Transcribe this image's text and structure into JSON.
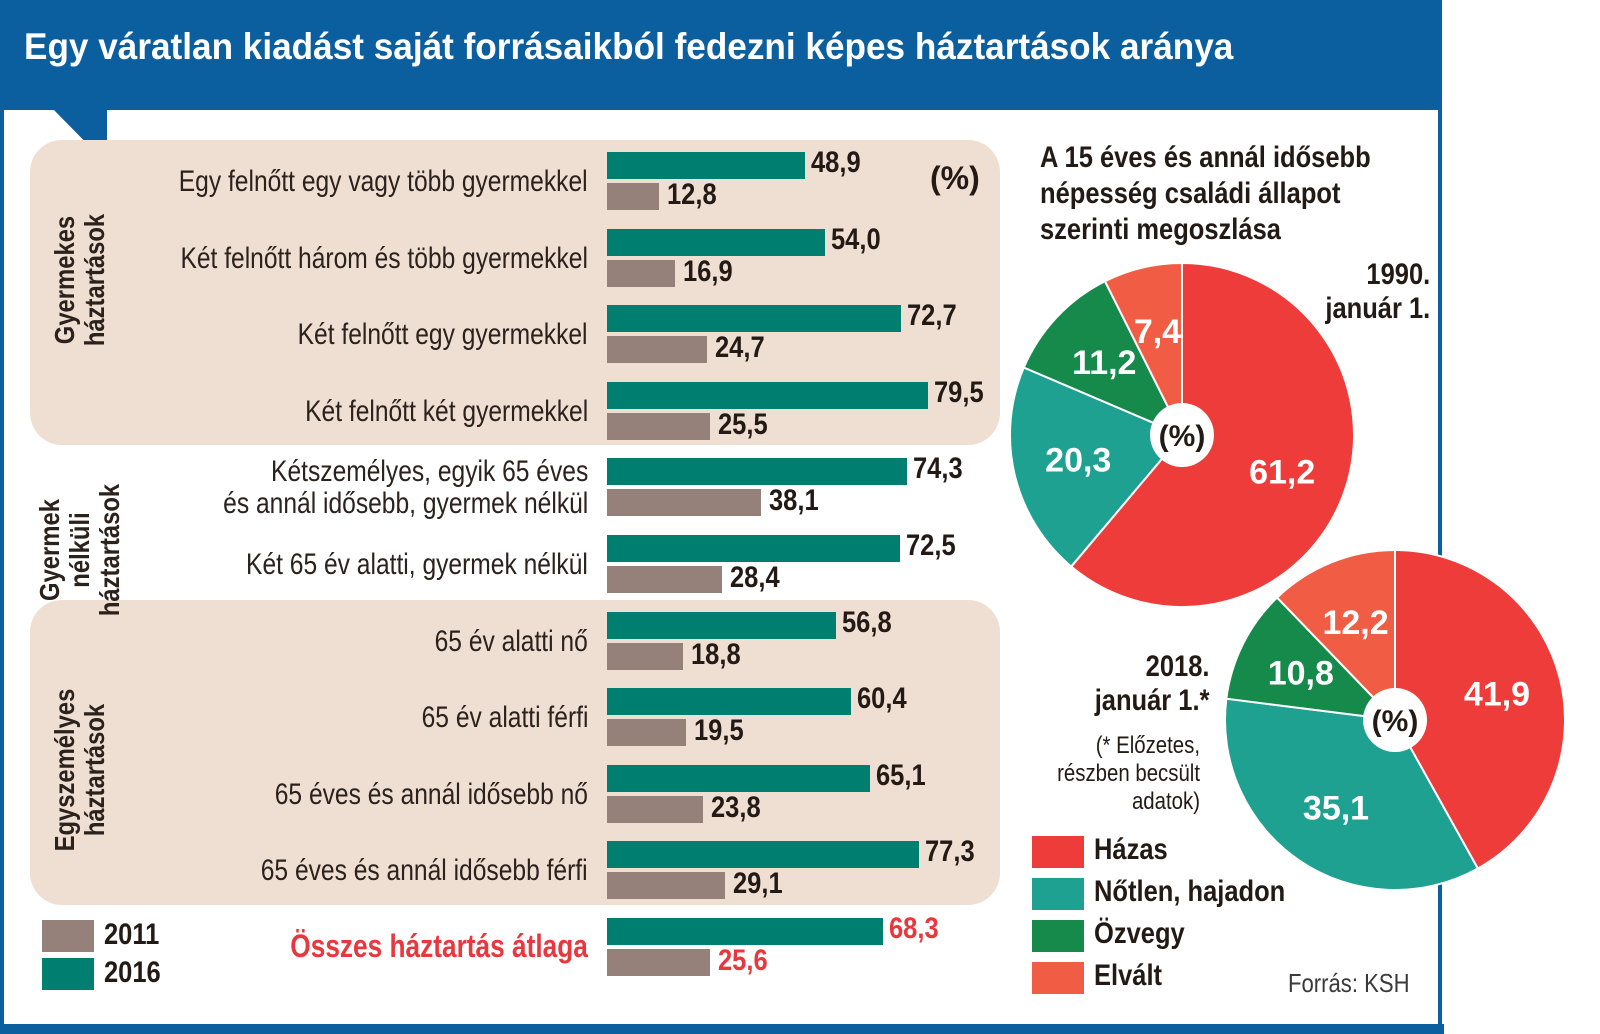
{
  "title": "Egy váratlan kiadást saját forrásaikból fedezni képes háztartások aránya",
  "unit_label": "(%)",
  "colors": {
    "y2011": "#95807a",
    "y2016": "#007f70",
    "avg_text": "#e8383d",
    "hazas": "#ee3c3a",
    "notlen": "#1ea190",
    "ozvegy": "#168a4a",
    "elvalt": "#f15c44",
    "frame": "#0b5f9e"
  },
  "chart_data": [
    {
      "type": "bar",
      "orientation": "horizontal",
      "title": "Egy váratlan kiadást saját forrásaikból fedezni képes háztartások aránya",
      "unit": "%",
      "legend": [
        {
          "name": "2011"
        },
        {
          "name": "2016"
        }
      ],
      "groups": [
        {
          "label": "Gyermekes háztartások",
          "rows": [
            0,
            1,
            2,
            3
          ]
        },
        {
          "label": "Gyermek nélküli háztartások",
          "rows": [
            4,
            5
          ]
        },
        {
          "label": "Egyszemélyes háztartások",
          "rows": [
            6,
            7,
            8,
            9
          ]
        }
      ],
      "categories": [
        "Egy felnőtt egy vagy több gyermekkel",
        "Két felnőtt három és több gyermekkel",
        "Két felnőtt egy gyermekkel",
        "Két felnőtt két gyermekkel",
        "Kétszemélyes, egyik 65 éves és annál idősebb, gyermek nélkül",
        "Két 65 év alatti, gyermek nélkül",
        "65 év alatti nő",
        "65 év alatti férfi",
        "65 éves és annál idősebb nő",
        "65 éves és annál idősebb férfi",
        "Összes háztartás átlaga"
      ],
      "category_lines": [
        [
          "Egy felnőtt egy vagy több gyermekkel"
        ],
        [
          "Két felnőtt három és több gyermekkel"
        ],
        [
          "Két felnőtt egy gyermekkel"
        ],
        [
          "Két felnőtt két gyermekkel"
        ],
        [
          "Kétszemélyes, egyik 65 éves",
          "és annál idősebb, gyermek nélkül"
        ],
        [
          "Két 65 év alatti, gyermek nélkül"
        ],
        [
          "65 év alatti nő"
        ],
        [
          "65 év alatti férfi"
        ],
        [
          "65 éves és annál idősebb nő"
        ],
        [
          "65 éves és annál idősebb férfi"
        ],
        [
          "Összes háztartás átlaga"
        ]
      ],
      "series": [
        {
          "name": "2016",
          "values": [
            48.9,
            54.0,
            72.7,
            79.5,
            74.3,
            72.5,
            56.8,
            60.4,
            65.1,
            77.3,
            68.3
          ],
          "labels": [
            "48,9",
            "54,0",
            "72,7",
            "79,5",
            "74,3",
            "72,5",
            "56,8",
            "60,4",
            "65,1",
            "77,3",
            "68,3"
          ]
        },
        {
          "name": "2011",
          "values": [
            12.8,
            16.9,
            24.7,
            25.5,
            38.1,
            28.4,
            18.8,
            19.5,
            23.8,
            29.1,
            25.6
          ],
          "labels": [
            "12,8",
            "16,9",
            "24,7",
            "25,5",
            "38,1",
            "28,4",
            "18,8",
            "19,5",
            "23,8",
            "29,1",
            "25,6"
          ]
        }
      ]
    },
    {
      "type": "pie",
      "title": "A 15 éves és annál idősebb népesség családi állapot szerinti megoszlása",
      "title_lines": [
        "A 15 éves és annál idősebb",
        "népesség családi állapot",
        "szerinti megoszlása"
      ],
      "date_lines": [
        "1990.",
        "január 1."
      ],
      "categories": [
        "Házas",
        "Nőtlen, hajadon",
        "Özvegy",
        "Elvált"
      ],
      "values": [
        61.2,
        20.3,
        11.2,
        7.4
      ],
      "labels": [
        "61,2",
        "20,3",
        "11,2",
        "7,4"
      ]
    },
    {
      "type": "pie",
      "date_lines": [
        "2018.",
        "január 1.*"
      ],
      "note": "(* Előzetes, részben becsült adatok)",
      "categories": [
        "Házas",
        "Nőtlen, hajadon",
        "Özvegy",
        "Elvált"
      ],
      "values": [
        41.9,
        35.1,
        10.8,
        12.2
      ],
      "labels": [
        "41,9",
        "35,1",
        "10,8",
        "12,2"
      ]
    }
  ],
  "pie_legend": [
    "Házas",
    "Nőtlen, hajadon",
    "Özvegy",
    "Elvált"
  ],
  "source": "Forrás: KSH"
}
